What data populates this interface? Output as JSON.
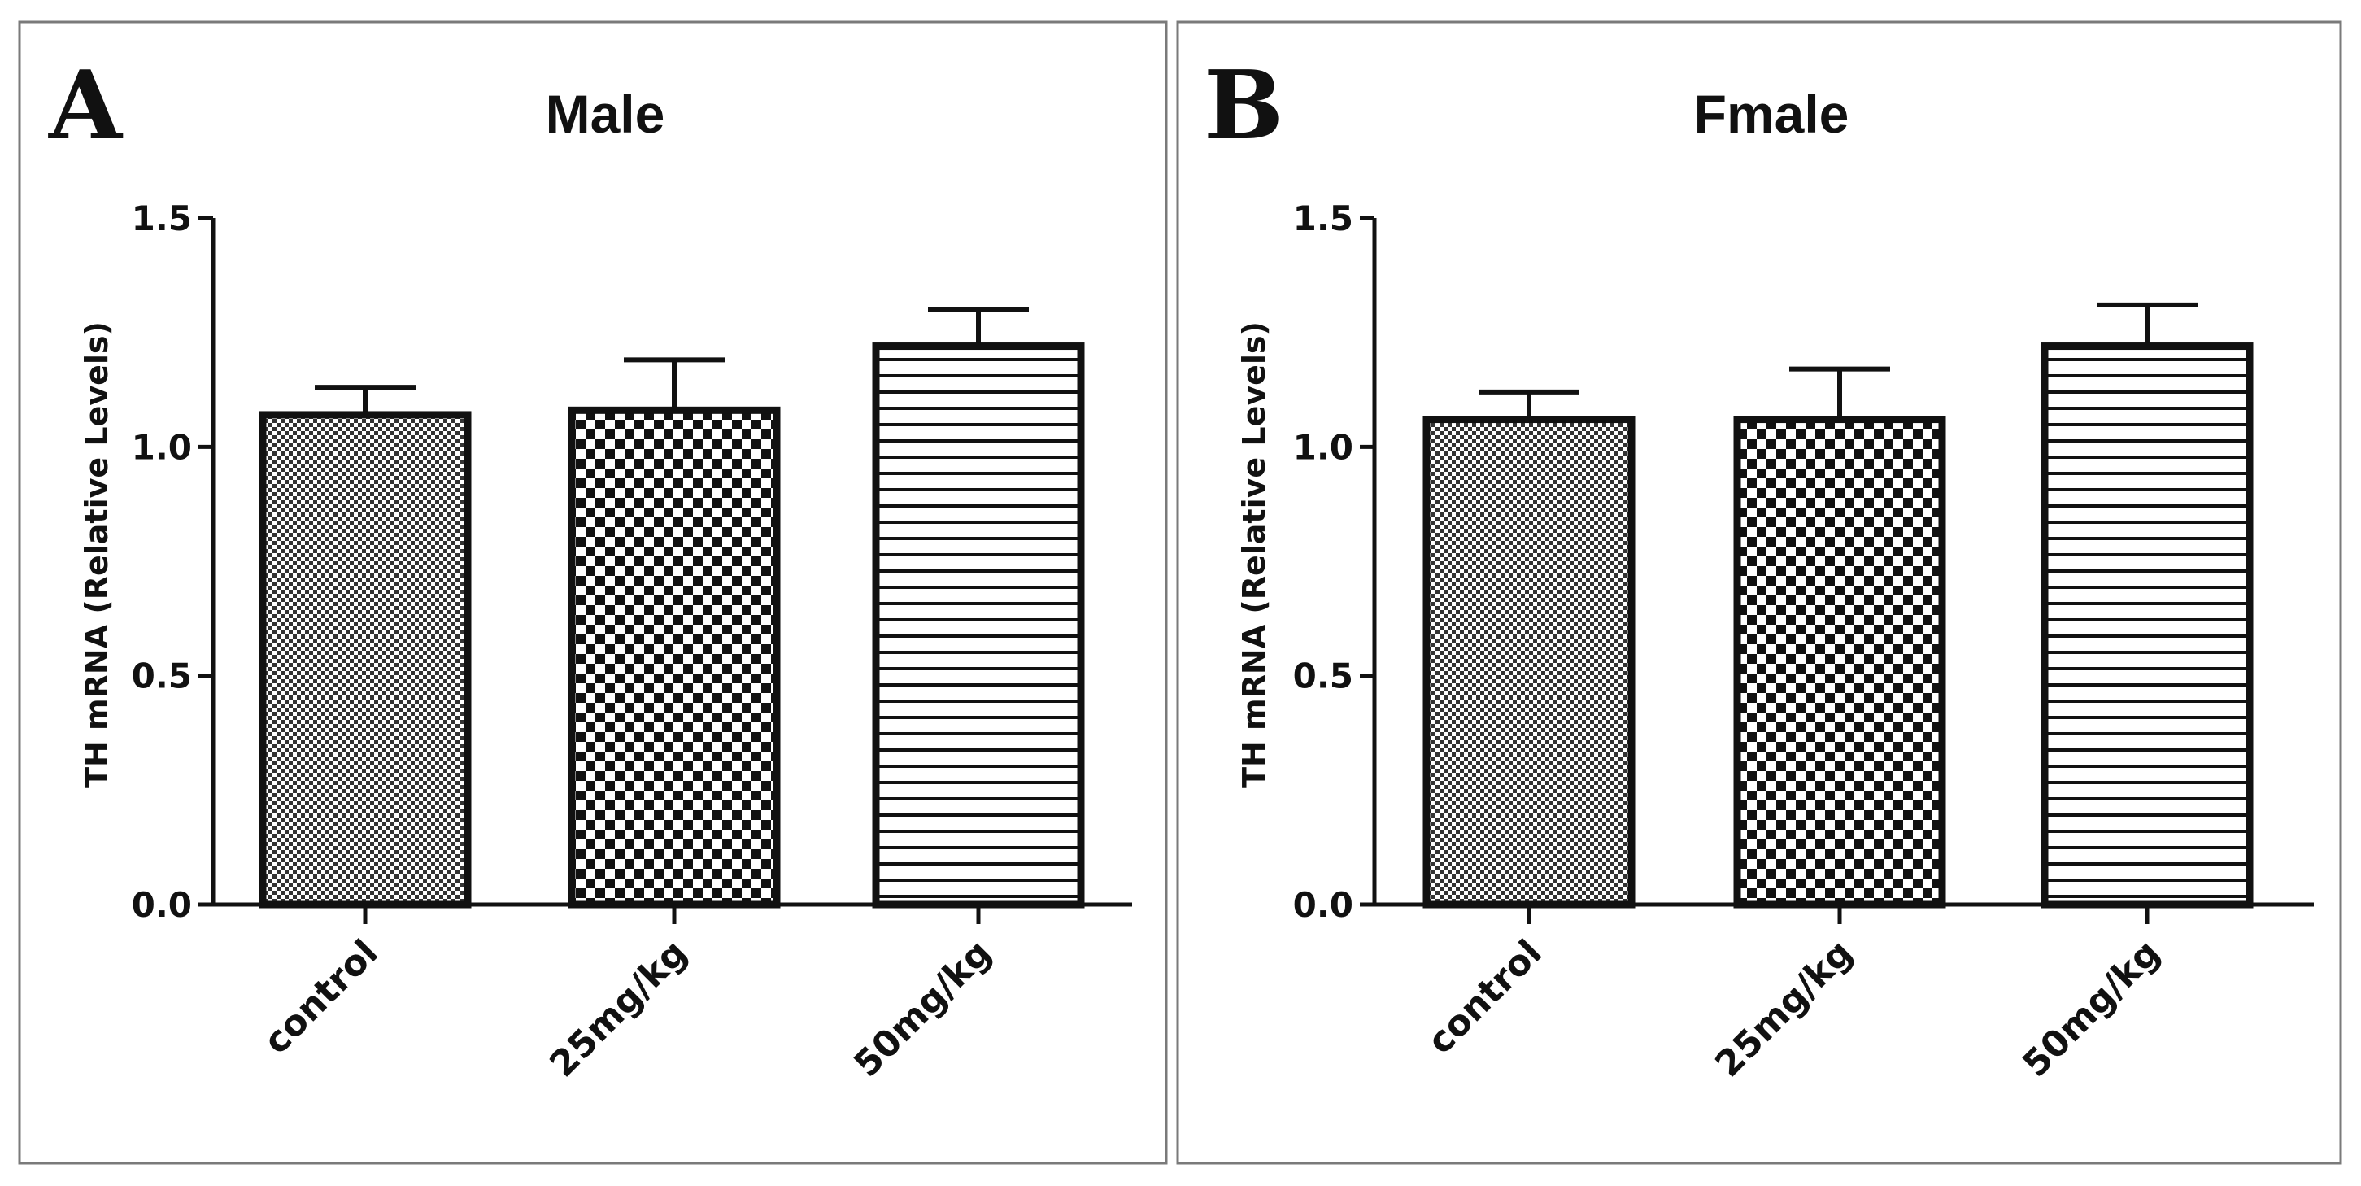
{
  "figure": {
    "panels": [
      {
        "letter": "A",
        "title": "Male"
      },
      {
        "letter": "B",
        "title": "Fmale"
      }
    ]
  },
  "chart_data": [
    {
      "type": "bar",
      "panel": "A",
      "title": "Male",
      "xlabel": "",
      "ylabel": "TH mRNA (Relative Levels)",
      "ylim": [
        0,
        1.5
      ],
      "yticks": [
        0.0,
        0.5,
        1.0,
        1.5
      ],
      "ytick_labels": [
        "0.0",
        "0.5",
        "1.0",
        "1.5"
      ],
      "categories": [
        "control",
        "25mg/kg",
        "50mg/kg"
      ],
      "values": [
        1.07,
        1.08,
        1.22
      ],
      "error_upper": [
        0.06,
        0.11,
        0.08
      ],
      "patterns": [
        "fine-checker",
        "coarse-checker",
        "horizontal-lines"
      ],
      "grid": false
    },
    {
      "type": "bar",
      "panel": "B",
      "title": "Fmale",
      "xlabel": "",
      "ylabel": "TH mRNA (Relative Levels)",
      "ylim": [
        0,
        1.5
      ],
      "yticks": [
        0.0,
        0.5,
        1.0,
        1.5
      ],
      "ytick_labels": [
        "0.0",
        "0.5",
        "1.0",
        "1.5"
      ],
      "categories": [
        "control",
        "25mg/kg",
        "50mg/kg"
      ],
      "values": [
        1.06,
        1.06,
        1.22
      ],
      "error_upper": [
        0.06,
        0.11,
        0.09
      ],
      "patterns": [
        "fine-checker",
        "coarse-checker",
        "horizontal-lines"
      ],
      "grid": false
    }
  ]
}
